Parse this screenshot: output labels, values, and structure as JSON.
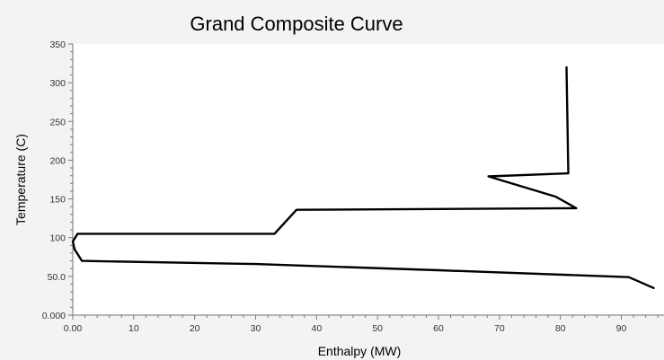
{
  "chart_data": {
    "type": "line",
    "title": "Grand Composite Curve",
    "xlabel": "Enthalpy (MW)",
    "ylabel": "Temperature (C)",
    "xlim": [
      0,
      97
    ],
    "ylim": [
      0,
      350
    ],
    "x_ticks": [
      "0.00",
      "10",
      "20",
      "30",
      "40",
      "50",
      "60",
      "70",
      "80",
      "90"
    ],
    "y_ticks": [
      "0.000",
      "50.0",
      "100",
      "150",
      "200",
      "250",
      "300",
      "350"
    ],
    "grid": false,
    "legend": "none",
    "line_color": "#000000",
    "background": "#ffffff",
    "series": [
      {
        "x": [
          81.0,
          81.3,
          81.3,
          68.2,
          79.2,
          82.6,
          36.7,
          33.1,
          0.8,
          0.0,
          0.3,
          1.5,
          30,
          60,
          91.2,
          92.4,
          95.3
        ],
        "y": [
          320,
          183,
          183,
          179,
          153,
          138,
          136,
          105,
          105,
          95,
          85,
          70,
          66,
          58,
          49,
          45,
          35
        ]
      }
    ]
  }
}
